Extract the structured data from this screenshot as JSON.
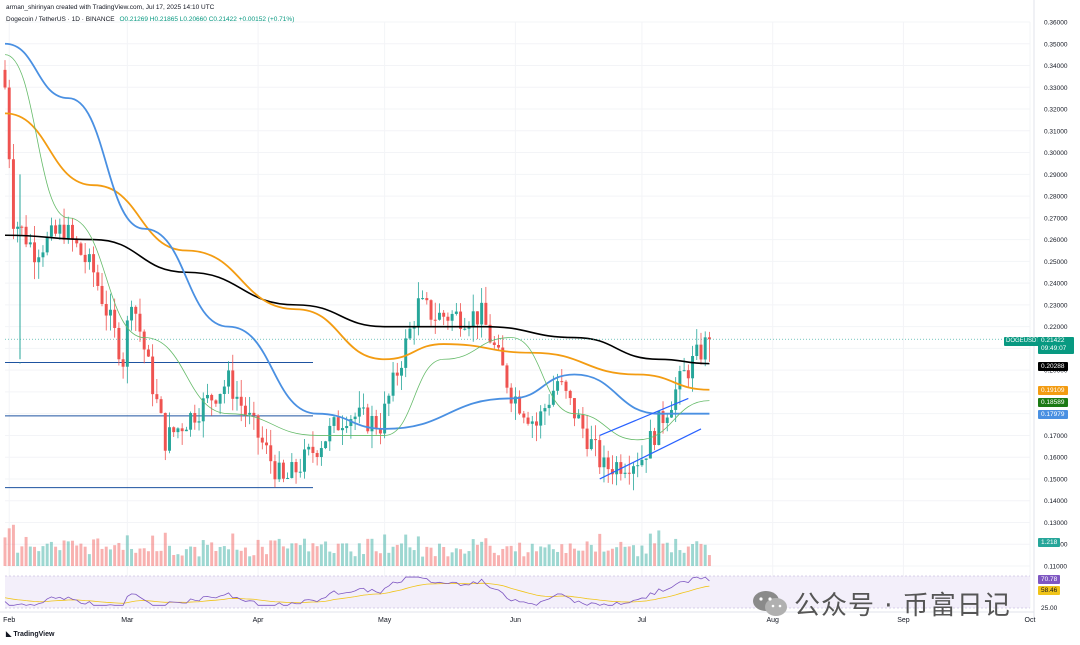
{
  "header": {
    "line1": "arman_shirinyan created with TradingView.com, Jul 17, 2025 14:10 UTC",
    "symbol": "Dogecoin / TetherUS · 1D · BINANCE",
    "ohlc": "O0.21269 H0.21865 L0.20660 C0.21422 +0.00152 (+0.71%)"
  },
  "price_axis": {
    "ticks": [
      "0.36000",
      "0.35000",
      "0.34000",
      "0.33000",
      "0.32000",
      "0.31000",
      "0.30000",
      "0.29000",
      "0.28000",
      "0.27000",
      "0.26000",
      "0.25000",
      "0.24000",
      "0.23000",
      "0.22000",
      "0.21000",
      "0.20000",
      "0.19000",
      "0.18000",
      "0.17000",
      "0.16000",
      "0.15000",
      "0.14000",
      "0.13000",
      "0.12000",
      "0.11000"
    ],
    "symbol_tag": "DOGEUSDT",
    "current_price": "0.21422",
    "countdown": "09:49:07",
    "labels": [
      {
        "value": "0.20288",
        "color": "#000000"
      },
      {
        "value": "0.19109",
        "color": "#f39c12"
      },
      {
        "value": "0.18589",
        "color": "#1b7a14"
      },
      {
        "value": "0.17979",
        "color": "#4a90e2"
      },
      {
        "value": "1.218",
        "color": "#26a69a"
      },
      {
        "value": "70.78",
        "color": "#7e57c2"
      },
      {
        "value": "58.46",
        "color": "#f0c419"
      },
      {
        "value": "25.00",
        "color": ""
      }
    ]
  },
  "time_axis": [
    "Feb",
    "Mar",
    "Apr",
    "May",
    "Jun",
    "Jul",
    "Aug",
    "Sep",
    "Oct"
  ],
  "colors": {
    "up": "#26a69a",
    "down": "#ef5350",
    "ma200": "#000000",
    "ma100": "#f39c12",
    "ma50": "#4a90e2",
    "ma20": "#66bb6a",
    "rsi": "#7e57c2",
    "rsi_ma": "#f0c419",
    "hline": "#1e53a0",
    "channel": "#2962ff"
  },
  "watermark": {
    "icon": "wechat-icon",
    "text": "公众号 · 币富日记"
  },
  "footer": {
    "logo_text": "TradingView"
  },
  "chart_data": {
    "type": "candlestick",
    "ylim": [
      0.11,
      0.36
    ],
    "x_range": [
      "2025-01-31",
      "2025-10-01"
    ],
    "time_ticks": [
      "2025-02-01",
      "2025-03-01",
      "2025-04-01",
      "2025-05-01",
      "2025-06-01",
      "2025-07-01",
      "2025-08-01",
      "2025-09-01",
      "2025-10-01"
    ],
    "candle_key_points": [
      {
        "date": "2025-01-31",
        "close": 0.33
      },
      {
        "date": "2025-02-02",
        "close": 0.27
      },
      {
        "date": "2025-02-07",
        "close": 0.255
      },
      {
        "date": "2025-02-14",
        "close": 0.265
      },
      {
        "date": "2025-02-21",
        "close": 0.245
      },
      {
        "date": "2025-02-28",
        "close": 0.205
      },
      {
        "date": "2025-03-02",
        "close": 0.235
      },
      {
        "date": "2025-03-10",
        "close": 0.168
      },
      {
        "date": "2025-03-25",
        "close": 0.195
      },
      {
        "date": "2025-04-07",
        "close": 0.148
      },
      {
        "date": "2025-04-22",
        "close": 0.18
      },
      {
        "date": "2025-04-30",
        "close": 0.175
      },
      {
        "date": "2025-05-09",
        "close": 0.23
      },
      {
        "date": "2025-05-13",
        "close": 0.225
      },
      {
        "date": "2025-05-24",
        "close": 0.225
      },
      {
        "date": "2025-05-31",
        "close": 0.19
      },
      {
        "date": "2025-06-06",
        "close": 0.175
      },
      {
        "date": "2025-06-11",
        "close": 0.195
      },
      {
        "date": "2025-06-22",
        "close": 0.155
      },
      {
        "date": "2025-07-01",
        "close": 0.16
      },
      {
        "date": "2025-07-11",
        "close": 0.198
      },
      {
        "date": "2025-07-17",
        "close": 0.21422
      }
    ],
    "moving_averages": [
      {
        "name": "0.20288",
        "color": "#000000",
        "points": [
          [
            "2025-01-31",
            0.262
          ],
          [
            "2025-02-21",
            0.26
          ],
          [
            "2025-03-15",
            0.245
          ],
          [
            "2025-04-10",
            0.23
          ],
          [
            "2025-05-01",
            0.22
          ],
          [
            "2025-05-25",
            0.22
          ],
          [
            "2025-06-15",
            0.215
          ],
          [
            "2025-07-05",
            0.205
          ],
          [
            "2025-07-17",
            0.203
          ]
        ]
      },
      {
        "name": "0.19109",
        "color": "#f39c12",
        "points": [
          [
            "2025-01-31",
            0.318
          ],
          [
            "2025-02-21",
            0.285
          ],
          [
            "2025-03-15",
            0.255
          ],
          [
            "2025-04-10",
            0.228
          ],
          [
            "2025-05-01",
            0.205
          ],
          [
            "2025-05-15",
            0.212
          ],
          [
            "2025-06-05",
            0.208
          ],
          [
            "2025-06-30",
            0.198
          ],
          [
            "2025-07-17",
            0.191
          ]
        ]
      },
      {
        "name": "0.17979",
        "color": "#4a90e2",
        "points": [
          [
            "2025-01-31",
            0.35
          ],
          [
            "2025-02-15",
            0.325
          ],
          [
            "2025-03-05",
            0.265
          ],
          [
            "2025-03-25",
            0.22
          ],
          [
            "2025-04-15",
            0.18
          ],
          [
            "2025-05-01",
            0.173
          ],
          [
            "2025-05-31",
            0.187
          ],
          [
            "2025-06-15",
            0.198
          ],
          [
            "2025-07-05",
            0.18
          ],
          [
            "2025-07-17",
            0.18
          ]
        ]
      },
      {
        "name": "0.18589",
        "color": "#66bb6a",
        "points": [
          [
            "2025-01-31",
            0.345
          ],
          [
            "2025-02-15",
            0.27
          ],
          [
            "2025-03-05",
            0.215
          ],
          [
            "2025-03-25",
            0.18
          ],
          [
            "2025-04-15",
            0.17
          ],
          [
            "2025-05-01",
            0.17
          ],
          [
            "2025-05-15",
            0.205
          ],
          [
            "2025-05-31",
            0.215
          ],
          [
            "2025-06-15",
            0.18
          ],
          [
            "2025-06-30",
            0.168
          ],
          [
            "2025-07-17",
            0.186
          ]
        ]
      }
    ],
    "horizontal_levels": [
      0.2035,
      0.179,
      0.146
    ],
    "channel": {
      "lower": [
        [
          "2025-06-21",
          0.15
        ],
        [
          "2025-07-15",
          0.173
        ]
      ],
      "upper": [
        [
          "2025-06-21",
          0.17
        ],
        [
          "2025-07-12",
          0.187
        ]
      ]
    },
    "volume_last": "1.218",
    "rsi_last": "70.78",
    "rsi_ma_last": "58.46"
  }
}
